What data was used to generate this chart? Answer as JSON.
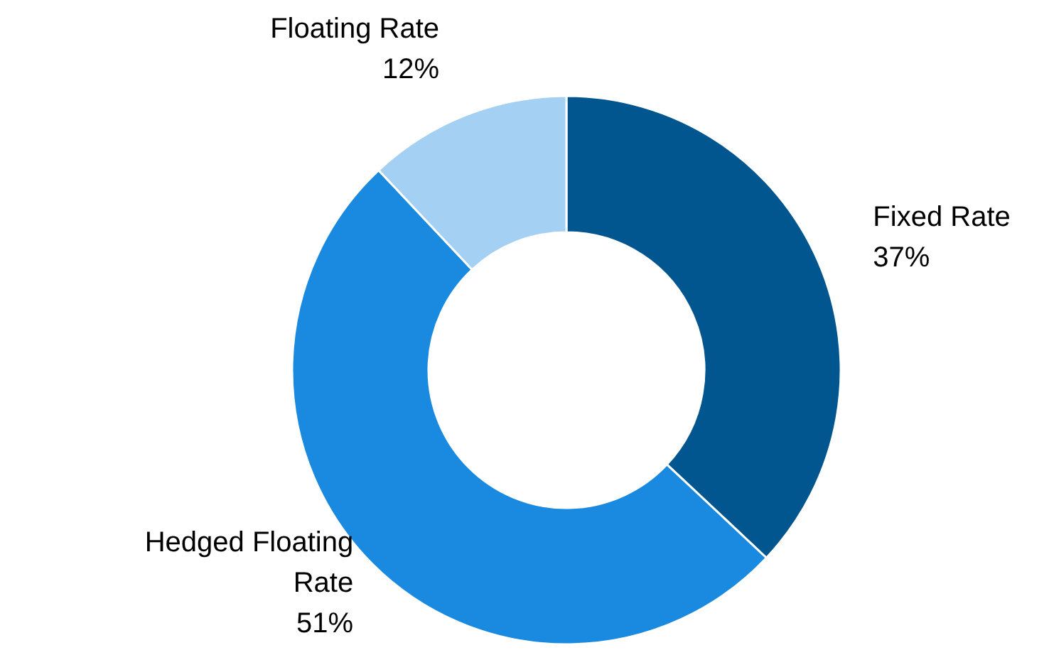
{
  "chart_data": {
    "type": "donut",
    "categories": [
      "Fixed Rate",
      "Hedged Floating Rate",
      "Floating Rate"
    ],
    "values": [
      37,
      51,
      12
    ],
    "colors": [
      "#02568f",
      "#1a8ae0",
      "#a3d0f3"
    ],
    "value_labels": [
      "37%",
      "51%",
      "12%"
    ]
  }
}
